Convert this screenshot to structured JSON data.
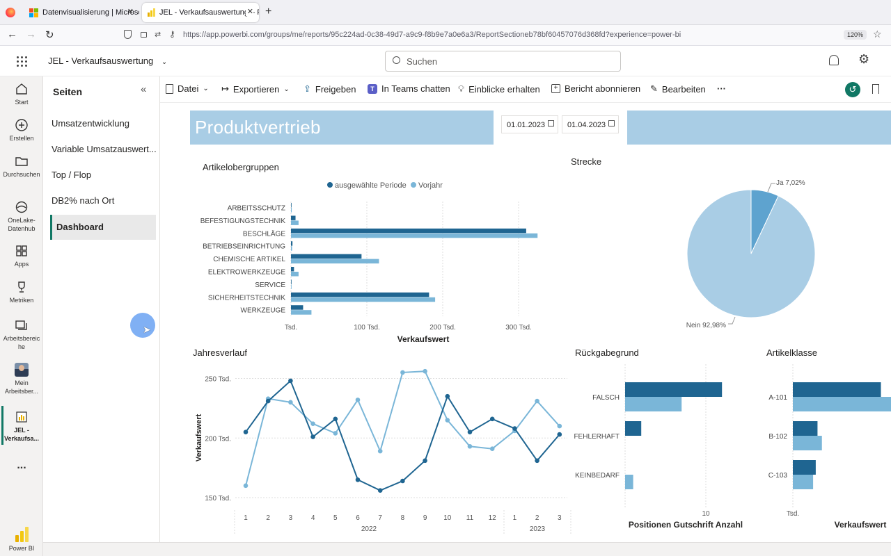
{
  "browser": {
    "tabs": [
      {
        "title": "Datenvisualisierung | Microsoft"
      },
      {
        "title": "JEL - Verkaufsauswertung – Pow"
      }
    ],
    "url": "https://app.powerbi.com/groups/me/reports/95c224ad-0c38-49d7-a9c9-f8b9e7a0e6a3/ReportSectioneb78bf60457076d368fd?experience=power-bi",
    "zoom": "120%"
  },
  "header": {
    "report_title": "JEL - Verkaufsauswertung",
    "search_placeholder": "Suchen"
  },
  "leftnav": {
    "items": [
      {
        "label": "Start",
        "icon": "home-icon"
      },
      {
        "label": "Erstellen",
        "icon": "plus-circle-icon"
      },
      {
        "label": "Durchsuchen",
        "icon": "folder-icon"
      },
      {
        "label": "OneLake-Datenhub",
        "icon": "onelake-icon"
      },
      {
        "label": "Apps",
        "icon": "apps-icon"
      },
      {
        "label": "Metriken",
        "icon": "trophy-icon"
      },
      {
        "label": "Arbeitsbereiche",
        "icon": "workspaces-icon"
      },
      {
        "label": "Mein Arbeitsber...",
        "icon": "avatar"
      },
      {
        "label": "JEL - Verkaufsa...",
        "icon": "report-icon"
      }
    ],
    "more": "...",
    "brand": "Power BI"
  },
  "pages": {
    "title": "Seiten",
    "items": [
      {
        "label": "Umsatzentwicklung"
      },
      {
        "label": "Variable Umsatzauswert..."
      },
      {
        "label": "Top / Flop"
      },
      {
        "label": "DB2% nach Ort"
      },
      {
        "label": "Dashboard"
      }
    ],
    "selected": "Dashboard"
  },
  "toolbar": {
    "datei": "Datei",
    "exportieren": "Exportieren",
    "freigeben": "Freigeben",
    "teams": "In Teams chatten",
    "einblicke": "Einblicke erhalten",
    "abonnieren": "Bericht abonnieren",
    "bearbeiten": "Bearbeiten",
    "more": "···"
  },
  "report": {
    "title": "Produktvertrieb",
    "date_from": "01.01.2023",
    "date_to": "01.04.2023",
    "colors": {
      "current": "#1f6591",
      "previous": "#7ab6d8",
      "header": "#a9cde5",
      "pie_main": "#a9cde5",
      "pie_small": "#5ea3cf"
    }
  },
  "chart_data": [
    {
      "type": "bar",
      "title": "Artikelobergruppen",
      "orientation": "horizontal",
      "categories": [
        "ARBEITSSCHUTZ",
        "BEFESTIGUNGSTECHNIK",
        "BESCHLÄGE",
        "BETRIEBSEINRICHTUNG",
        "CHEMISCHE ARTIKEL",
        "ELEKTROWERKZEUGE",
        "SERVICE",
        "SICHERHEITSTECHNIK",
        "WERKZEUGE"
      ],
      "series": [
        {
          "name": "ausgewählte Periode",
          "values": [
            0.5,
            6,
            310,
            2,
            93,
            4,
            0,
            182,
            16
          ]
        },
        {
          "name": "Vorjahr",
          "values": [
            1,
            10,
            325,
            1.5,
            116,
            10,
            0,
            190,
            27
          ]
        }
      ],
      "xlabel": "Verkaufswert",
      "xticks": [
        "Tsd.",
        "100 Tsd.",
        "200 Tsd.",
        "300 Tsd."
      ],
      "xlim": [
        0,
        350
      ],
      "legend": "top"
    },
    {
      "type": "pie",
      "title": "Strecke",
      "slices": [
        {
          "label": "Ja 7,02%",
          "value": 7.02
        },
        {
          "label": "Nein 92,98%",
          "value": 92.98
        }
      ]
    },
    {
      "type": "line",
      "title": "Jahresverlauf",
      "ylabel": "Verkaufswert",
      "yticks": [
        "250 Tsd.",
        "200 Tsd.",
        "150 Tsd."
      ],
      "ylim": [
        150,
        250
      ],
      "x": [
        "1",
        "2",
        "3",
        "4",
        "5",
        "6",
        "7",
        "8",
        "9",
        "10",
        "11",
        "12",
        "1",
        "2",
        "3"
      ],
      "year_labels": [
        "2022",
        "2023"
      ],
      "series": [
        {
          "name": "ausgewählte Periode",
          "values": [
            205,
            231,
            248,
            201,
            216,
            165,
            156,
            164,
            181,
            235,
            205,
            216,
            208,
            181,
            203
          ]
        },
        {
          "name": "Vorjahr",
          "values": [
            160,
            233,
            230,
            212,
            204,
            232,
            189,
            255,
            256,
            215,
            193,
            191,
            206,
            231,
            210
          ]
        }
      ]
    },
    {
      "type": "bar",
      "title": "Rückgabegrund",
      "orientation": "horizontal",
      "categories": [
        "FALSCH",
        "FEHLERHAFT",
        "KEINBEDARF"
      ],
      "series": [
        {
          "name": "ausgewählte Periode",
          "values": [
            12,
            2,
            0
          ]
        },
        {
          "name": "Vorjahr",
          "values": [
            7,
            0,
            1
          ]
        }
      ],
      "xlabel": "Positionen Gutschrift Anzahl",
      "xticks": [
        "10"
      ],
      "xlim": [
        0,
        14
      ]
    },
    {
      "type": "bar",
      "title": "Artikelklasse",
      "orientation": "horizontal",
      "categories": [
        "A-101",
        "B-102",
        "C-103"
      ],
      "series": [
        {
          "name": "ausgewählte Periode",
          "values": [
            100,
            28,
            26
          ]
        },
        {
          "name": "Vorjahr",
          "values": [
            112,
            33,
            23
          ]
        }
      ],
      "xlabel": "Verkaufswert",
      "xticks": [
        "Tsd."
      ],
      "xlim": [
        0,
        110
      ]
    }
  ]
}
